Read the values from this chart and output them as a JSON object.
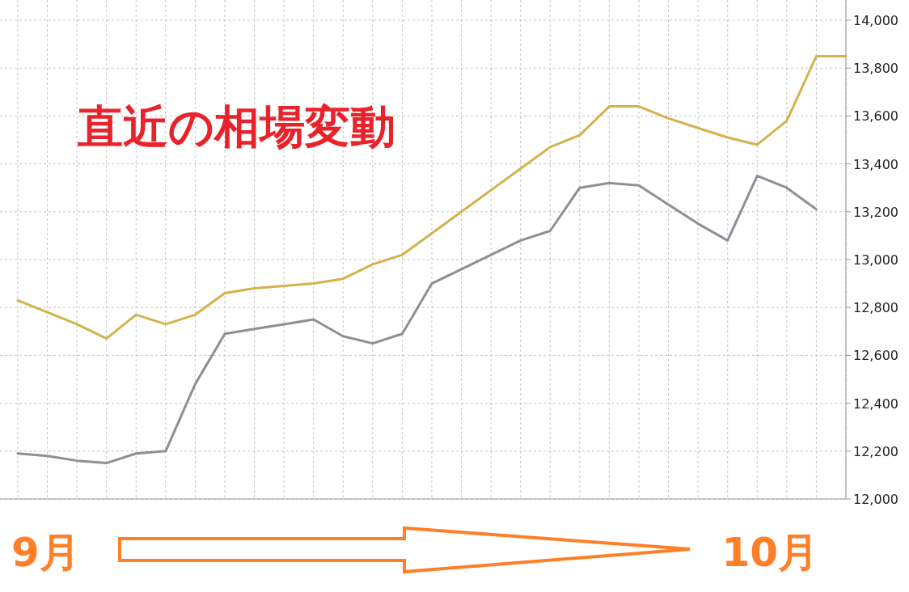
{
  "chart_data": {
    "type": "line",
    "title": "直近の相場変動",
    "annotations": [
      "9月",
      "10月"
    ],
    "categories": [
      null,
      null,
      null,
      null,
      null,
      null,
      null,
      null,
      null,
      null,
      null,
      null,
      null,
      null,
      null,
      null,
      null,
      null,
      null,
      null,
      null,
      null,
      null,
      null,
      null,
      null,
      null,
      null,
      null
    ],
    "series": [
      {
        "color": "#d4b24c",
        "values": [
          12830,
          12780,
          12730,
          12670,
          12770,
          12730,
          12770,
          12860,
          12880,
          12890,
          12900,
          12920,
          12980,
          13020,
          13110,
          13200,
          13290,
          13380,
          13470,
          13520,
          13640,
          13640,
          13590,
          13550,
          13510,
          13480,
          13580,
          13850,
          13850
        ]
      },
      {
        "color": "#8f8e96",
        "values": [
          12190,
          12180,
          12160,
          12150,
          12190,
          12200,
          12480,
          12690,
          12710,
          12730,
          12750,
          12680,
          12650,
          12690,
          12900,
          12960,
          13020,
          13080,
          13120,
          13300,
          13320,
          13310,
          13230,
          13150,
          13080,
          13350,
          13300,
          13210,
          null
        ]
      }
    ],
    "ylim": [
      12000,
      14000
    ],
    "yticks": [
      {
        "value": 12000,
        "label": "12,000"
      },
      {
        "value": 12200,
        "label": "12,200"
      },
      {
        "value": 12400,
        "label": "12,400"
      },
      {
        "value": 12600,
        "label": "12,600"
      },
      {
        "value": 12800,
        "label": "12,800"
      },
      {
        "value": 13000,
        "label": "13,000"
      },
      {
        "value": 13200,
        "label": "13,200"
      },
      {
        "value": 13400,
        "label": "13,400"
      },
      {
        "value": 13600,
        "label": "13,600"
      },
      {
        "value": 13800,
        "label": "13,800"
      },
      {
        "value": 14000,
        "label": "14,000"
      }
    ],
    "grid": true,
    "marker": "none",
    "line_style": "solid"
  }
}
